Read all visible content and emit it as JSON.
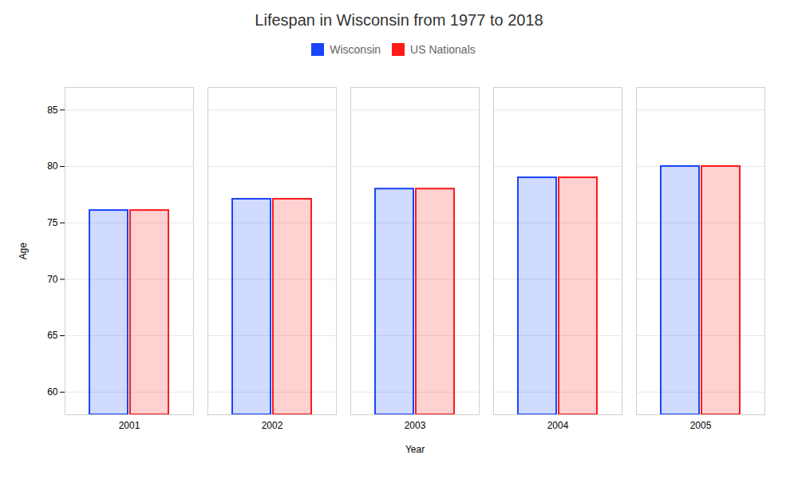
{
  "chart_data": {
    "type": "bar",
    "title": "Lifespan in Wisconsin from 1977 to 2018",
    "xlabel": "Year",
    "ylabel": "Age",
    "categories": [
      "2001",
      "2002",
      "2003",
      "2004",
      "2005"
    ],
    "series": [
      {
        "name": "Wisconsin",
        "color": "#1a44ff",
        "values": [
          76.1,
          77.1,
          78.0,
          79.0,
          80.0
        ]
      },
      {
        "name": "US Nationals",
        "color": "#ff1a1a",
        "values": [
          76.1,
          77.1,
          78.0,
          79.0,
          80.0
        ]
      }
    ],
    "ylim": [
      58,
      87
    ],
    "yticks": [
      60,
      65,
      70,
      75,
      80,
      85
    ],
    "grid": true,
    "legend": "top"
  }
}
